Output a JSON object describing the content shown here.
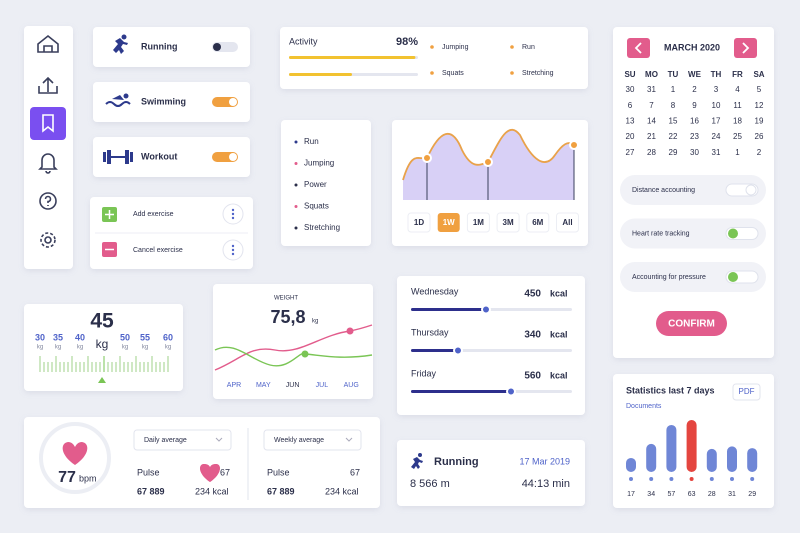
{
  "activities": [
    {
      "label": "Running",
      "on": false
    },
    {
      "label": "Swimming",
      "on": true
    },
    {
      "label": "Workout",
      "on": true
    }
  ],
  "exercise": [
    "Add exercise",
    "Cancel exercise"
  ],
  "activity": {
    "label": "Activity",
    "percent": 98,
    "percent_label": "98%",
    "legend": [
      "Jumping",
      "Run",
      "Squats",
      "Stretching"
    ]
  },
  "list": [
    "Run",
    "Jumping",
    "Power",
    "Squats",
    "Stretching"
  ],
  "ranges": {
    "options": [
      "1D",
      "1W",
      "1M",
      "3M",
      "6M",
      "All"
    ],
    "selected": 1
  },
  "calendar": {
    "month": "MARCH 2020",
    "weekdays": [
      "SU",
      "MO",
      "TU",
      "WE",
      "TH",
      "FR",
      "SA"
    ],
    "days": [
      [
        30,
        31,
        1,
        2,
        3,
        4,
        5
      ],
      [
        6,
        7,
        8,
        9,
        10,
        11,
        12
      ],
      [
        13,
        14,
        15,
        16,
        17,
        18,
        19
      ],
      [
        20,
        21,
        22,
        23,
        24,
        25,
        26
      ],
      [
        27,
        28,
        29,
        30,
        31,
        1,
        2
      ]
    ]
  },
  "settings": [
    {
      "label": "Distance accounting",
      "on": false
    },
    {
      "label": "Heart rate tracking",
      "on": true
    },
    {
      "label": "Accounting for pressure",
      "on": true
    }
  ],
  "confirm": "CONFIRM",
  "scale": {
    "value": "45",
    "unit": "kg",
    "ticks": [
      "30",
      "35",
      "40",
      "50",
      "55",
      "60"
    ],
    "tick_unit": "kg"
  },
  "weight": {
    "label": "WEIGHT",
    "value": "75,8",
    "unit": "kg",
    "months": [
      "APR",
      "MAY",
      "JUN",
      "JUL",
      "AUG"
    ]
  },
  "calories": [
    {
      "day": "Wednesday",
      "value": "450",
      "unit": "kcal"
    },
    {
      "day": "Thursday",
      "value": "340",
      "unit": "kcal"
    },
    {
      "day": "Friday",
      "value": "560",
      "unit": "kcal"
    }
  ],
  "statistics": {
    "title": "Statistics last 7 days",
    "export": "PDF",
    "subtitle": "Documents",
    "values": [
      17,
      34,
      57,
      63,
      28,
      31,
      29
    ],
    "color": "#6f86d6",
    "highlight": {
      "index": 3,
      "color": "#e4453f"
    }
  },
  "heart": {
    "value": "77",
    "unit": "bpm",
    "panels": [
      {
        "period": "Daily average",
        "pulse_label": "Pulse",
        "pulse": "67 889",
        "heart": "67",
        "kcal": "234 kcal"
      },
      {
        "period": "Weekly average",
        "pulse_label": "Pulse",
        "pulse": "67 889",
        "heart": "67",
        "kcal": "234 kcal"
      }
    ]
  },
  "run": {
    "title": "Running",
    "date": "17 Mar 2019",
    "distance": "8 566 m",
    "time": "44:13 min"
  }
}
